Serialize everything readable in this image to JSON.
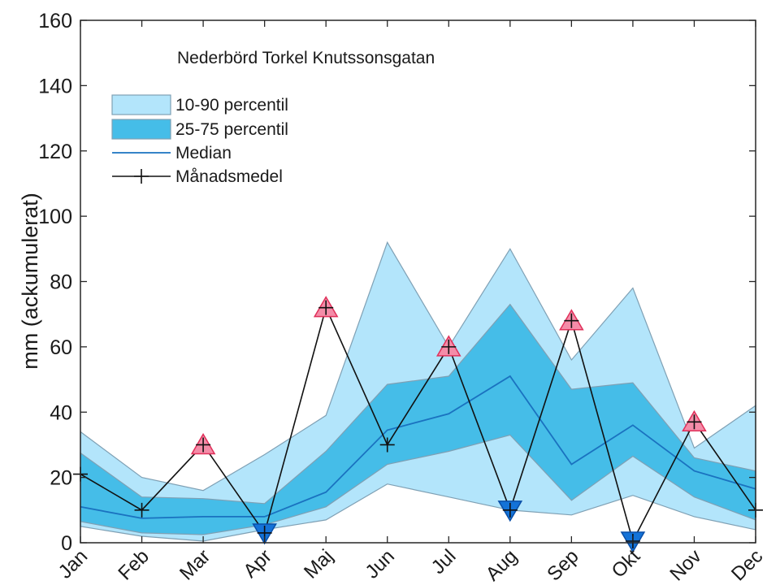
{
  "chart_data": {
    "type": "area",
    "title": "Nederbörd Torkel Knutssonsgatan",
    "ylabel": "mm (ackumulerat)",
    "xlabel": "",
    "categories": [
      "Jan",
      "Feb",
      "Mar",
      "Apr",
      "Maj",
      "Jun",
      "Jul",
      "Aug",
      "Sep",
      "Okt",
      "Nov",
      "Dec"
    ],
    "ylim": [
      0,
      160
    ],
    "yticks": [
      "0",
      "20",
      "40",
      "60",
      "80",
      "100",
      "120",
      "140",
      "160"
    ],
    "grid": false,
    "legend_position": "top-left",
    "legend": [
      {
        "label": "10-90 percentil",
        "kind": "band"
      },
      {
        "label": "25-75 percentil",
        "kind": "band"
      },
      {
        "label": "Median",
        "kind": "line"
      },
      {
        "label": "Månadsmedel",
        "kind": "line-plus"
      }
    ],
    "bands": {
      "p10": [
        5,
        2,
        0.5,
        4,
        7,
        18,
        14,
        10,
        8.5,
        14.5,
        8,
        4
      ],
      "p90": [
        34,
        20,
        16,
        27,
        39,
        92,
        60,
        90,
        56,
        78,
        29,
        42
      ],
      "p25": [
        6.5,
        3,
        2.5,
        5.5,
        11,
        24,
        28,
        33,
        13,
        26.5,
        14,
        7
      ],
      "p75": [
        27.5,
        14,
        13.5,
        12,
        28,
        48.5,
        51,
        73,
        47,
        49,
        26,
        22
      ]
    },
    "median": [
      11,
      7.5,
      8,
      8,
      15.5,
      34.5,
      39.5,
      51,
      24,
      36,
      22,
      16.5
    ],
    "series": [
      {
        "name": "Månadsmedel",
        "values": [
          21,
          10,
          30,
          3,
          72,
          30,
          60,
          10,
          68,
          0.5,
          37,
          10
        ]
      }
    ],
    "markers": {
      "above": [
        2,
        4,
        6,
        8,
        10
      ],
      "below": [
        3,
        7,
        9
      ]
    },
    "colors": {
      "band_outer": "#b3e5fb",
      "band_inner": "#45bde8",
      "band_edge": "#7fa0b4",
      "median": "#1a72c0",
      "mean": "#111111",
      "marker_up_fill": "#f48ca8",
      "marker_up_edge": "#e0305a",
      "marker_down_fill": "#1473d8",
      "marker_down_edge": "#0a4fa8"
    }
  }
}
